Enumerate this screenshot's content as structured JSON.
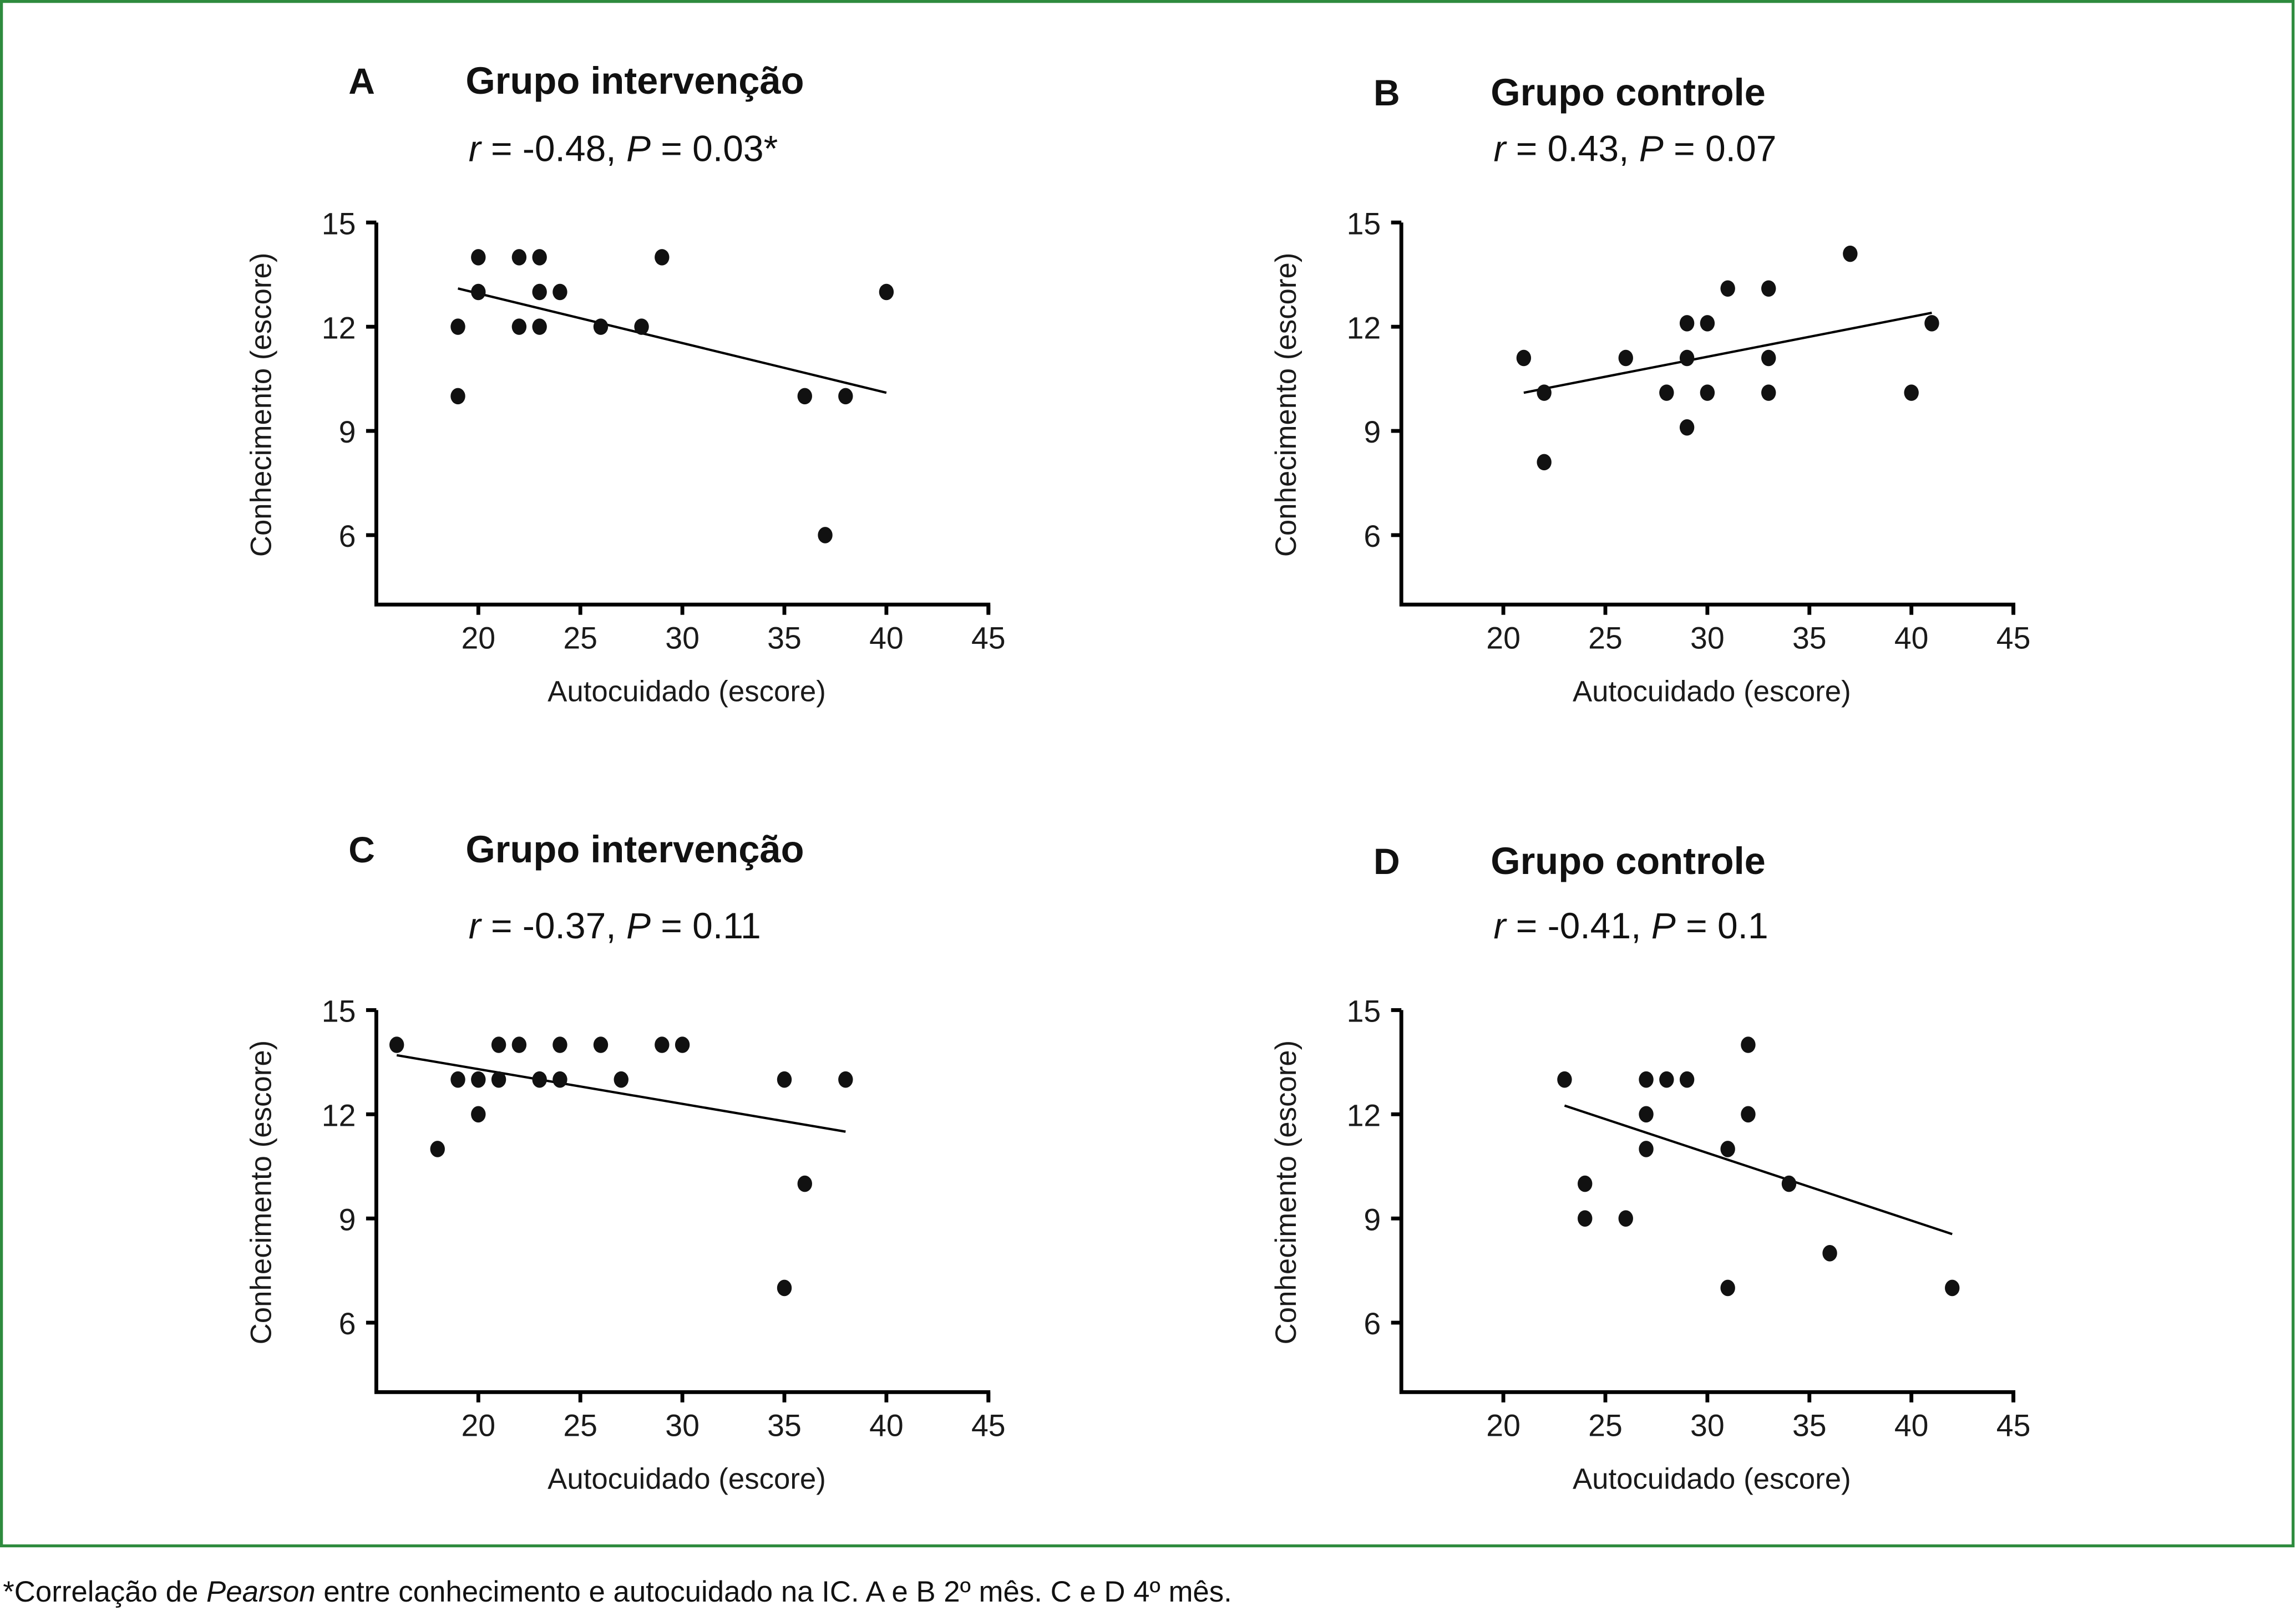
{
  "footnote": {
    "prefix": "*Correlação de ",
    "italic": "Pearson",
    "suffix": " entre conhecimento e autocuidado na IC. A e B 2º mês. C e D 4º mês."
  },
  "colors": {
    "frame": "#2e8b3e",
    "points": "#111111"
  },
  "chart_data": [
    {
      "type": "scatter",
      "panel": "A",
      "title": "Grupo intervenção",
      "stats": {
        "r_label": "r",
        "r_value": " = -0.48, ",
        "p_label": "P",
        "p_value": " = 0.03*"
      },
      "xlabel": "Autocuidado (escore)",
      "ylabel": "Conhecimento (escore)",
      "xlim": [
        15,
        45
      ],
      "ylim": [
        4,
        15
      ],
      "xticks": [
        "20",
        "25",
        "30",
        "35",
        "40",
        "45"
      ],
      "yticks": [
        "6",
        "9",
        "12",
        "15"
      ],
      "points": [
        [
          20,
          14
        ],
        [
          22,
          14
        ],
        [
          23,
          14
        ],
        [
          29,
          14
        ],
        [
          20,
          13
        ],
        [
          23,
          13
        ],
        [
          24,
          13
        ],
        [
          40,
          13
        ],
        [
          19,
          12
        ],
        [
          22,
          12
        ],
        [
          23,
          12
        ],
        [
          26,
          12
        ],
        [
          28,
          12
        ],
        [
          19,
          10
        ],
        [
          36,
          10
        ],
        [
          38,
          10
        ],
        [
          37,
          6
        ]
      ],
      "fit_line": [
        [
          19,
          13.1
        ],
        [
          40,
          10.1
        ]
      ]
    },
    {
      "type": "scatter",
      "panel": "B",
      "title": "Grupo controle",
      "stats": {
        "r_label": "r",
        "r_value": " = 0.43, ",
        "p_label": "P",
        "p_value": " = 0.07"
      },
      "xlabel": "Autocuidado (escore)",
      "ylabel": "Conhecimento (escore)",
      "xlim": [
        15,
        45
      ],
      "ylim": [
        4,
        15
      ],
      "xticks": [
        "20",
        "25",
        "30",
        "35",
        "40",
        "45"
      ],
      "yticks": [
        "6",
        "9",
        "12",
        "15"
      ],
      "points": [
        [
          37,
          14.1
        ],
        [
          31,
          13.1
        ],
        [
          33,
          13.1
        ],
        [
          29,
          12.1
        ],
        [
          30,
          12.1
        ],
        [
          41,
          12.1
        ],
        [
          21,
          11.1
        ],
        [
          26,
          11.1
        ],
        [
          29,
          11.1
        ],
        [
          33,
          11.1
        ],
        [
          22,
          10.1
        ],
        [
          28,
          10.1
        ],
        [
          30,
          10.1
        ],
        [
          33,
          10.1
        ],
        [
          40,
          10.1
        ],
        [
          29,
          9.1
        ],
        [
          22,
          8.1
        ]
      ],
      "fit_line": [
        [
          21,
          10.1
        ],
        [
          41,
          12.4
        ]
      ]
    },
    {
      "type": "scatter",
      "panel": "C",
      "title": "Grupo intervenção",
      "stats": {
        "r_label": "r",
        "r_value": " = -0.37, ",
        "p_label": "P",
        "p_value": " = 0.11"
      },
      "xlabel": "Autocuidado (escore)",
      "ylabel": "Conhecimento (escore)",
      "xlim": [
        15,
        45
      ],
      "ylim": [
        4,
        15
      ],
      "xticks": [
        "20",
        "25",
        "30",
        "35",
        "40",
        "45"
      ],
      "yticks": [
        "6",
        "9",
        "12",
        "15"
      ],
      "points": [
        [
          16,
          14
        ],
        [
          21,
          14
        ],
        [
          22,
          14
        ],
        [
          24,
          14
        ],
        [
          26,
          14
        ],
        [
          29,
          14
        ],
        [
          30,
          14
        ],
        [
          19,
          13
        ],
        [
          20,
          13
        ],
        [
          21,
          13
        ],
        [
          23,
          13
        ],
        [
          24,
          13
        ],
        [
          27,
          13
        ],
        [
          35,
          13
        ],
        [
          38,
          13
        ],
        [
          20,
          12
        ],
        [
          18,
          11
        ],
        [
          36,
          10
        ],
        [
          35,
          7
        ]
      ],
      "fit_line": [
        [
          16,
          13.7
        ],
        [
          38,
          11.5
        ]
      ]
    },
    {
      "type": "scatter",
      "panel": "D",
      "title": "Grupo controle",
      "stats": {
        "r_label": "r",
        "r_value": " = -0.41, ",
        "p_label": "P",
        "p_value": " = 0.1"
      },
      "xlabel": "Autocuidado (escore)",
      "ylabel": "Conhecimento (escore)",
      "xlim": [
        15,
        45
      ],
      "ylim": [
        4,
        15
      ],
      "xticks": [
        "20",
        "25",
        "30",
        "35",
        "40",
        "45"
      ],
      "yticks": [
        "6",
        "9",
        "12",
        "15"
      ],
      "points": [
        [
          32,
          14
        ],
        [
          23,
          13
        ],
        [
          27,
          13
        ],
        [
          28,
          13
        ],
        [
          29,
          13
        ],
        [
          27,
          12
        ],
        [
          32,
          12
        ],
        [
          27,
          11
        ],
        [
          31,
          11
        ],
        [
          24,
          10
        ],
        [
          34,
          10
        ],
        [
          24,
          9
        ],
        [
          26,
          9
        ],
        [
          36,
          8
        ],
        [
          31,
          7
        ],
        [
          42,
          7
        ]
      ],
      "fit_line": [
        [
          23,
          12.25
        ],
        [
          42,
          8.55
        ]
      ]
    }
  ]
}
